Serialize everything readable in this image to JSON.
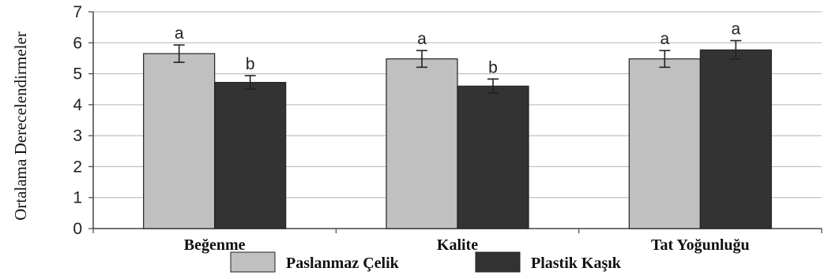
{
  "chart_data": {
    "type": "bar",
    "title": "",
    "xlabel": "",
    "ylabel": "Ortalama Derecelendirmeler",
    "ylim": [
      0,
      7
    ],
    "yticks": [
      "0",
      "1",
      "2",
      "3",
      "4",
      "5",
      "6",
      "7"
    ],
    "grid": true,
    "legend_position": "bottom",
    "categories": [
      "Beğenme",
      "Kalite",
      "Tat Yoğunluğu"
    ],
    "series": [
      {
        "name": "Paslanmaz Çelik",
        "color": "#c0c0c0",
        "values": [
          5.65,
          5.48,
          5.48
        ],
        "error": [
          0.28,
          0.27,
          0.27
        ],
        "labels": [
          "a",
          "a",
          "a"
        ]
      },
      {
        "name": "Plastik Kaşık",
        "color": "#333333",
        "values": [
          4.72,
          4.6,
          5.77
        ],
        "error": [
          0.22,
          0.23,
          0.3
        ],
        "labels": [
          "b",
          "b",
          "a"
        ]
      }
    ]
  }
}
